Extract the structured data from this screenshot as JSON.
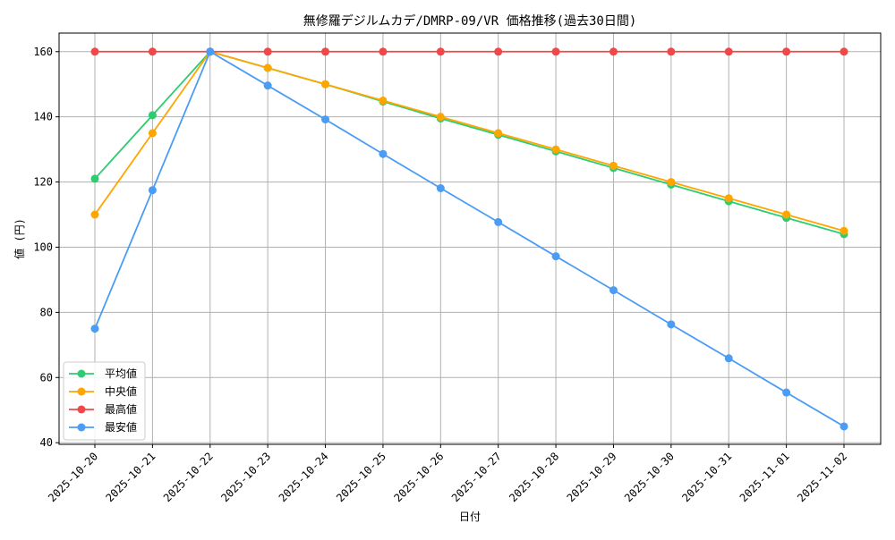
{
  "chart_data": {
    "type": "line",
    "title": "無修羅デジルムカデ/DMRP-09/VR 価格推移(過去30日間)",
    "xlabel": "日付",
    "ylabel": "値 (円)",
    "categories": [
      "2025-10-20",
      "2025-10-21",
      "2025-10-22",
      "2025-10-23",
      "2025-10-24",
      "2025-10-25",
      "2025-10-26",
      "2025-10-27",
      "2025-10-28",
      "2025-10-29",
      "2025-10-30",
      "2025-10-31",
      "2025-11-01",
      "2025-11-02"
    ],
    "ylim": [
      39.5,
      165.7
    ],
    "yticks": [
      40,
      60,
      80,
      100,
      120,
      140,
      160
    ],
    "grid": true,
    "legend_position": "lower-left",
    "series": [
      {
        "name": "平均値",
        "color": "#2ecc71",
        "values": [
          121,
          140.5,
          160,
          155,
          150,
          144.7,
          139.5,
          134.5,
          129.4,
          124.3,
          119.2,
          114.1,
          109,
          104
        ]
      },
      {
        "name": "中央値",
        "color": "#ffa500",
        "values": [
          110,
          135,
          160,
          155,
          150,
          145,
          140,
          135,
          130,
          125,
          120,
          115,
          110,
          105
        ]
      },
      {
        "name": "最高値",
        "color": "#f04848",
        "values": [
          160,
          160,
          160,
          160,
          160,
          160,
          160,
          160,
          160,
          160,
          160,
          160,
          160,
          160
        ]
      },
      {
        "name": "最安値",
        "color": "#4b9cf5",
        "values": [
          75,
          117.5,
          160,
          149.6,
          139.2,
          128.6,
          118.1,
          107.7,
          97.2,
          86.8,
          76.3,
          65.9,
          55.4,
          45
        ]
      }
    ]
  }
}
